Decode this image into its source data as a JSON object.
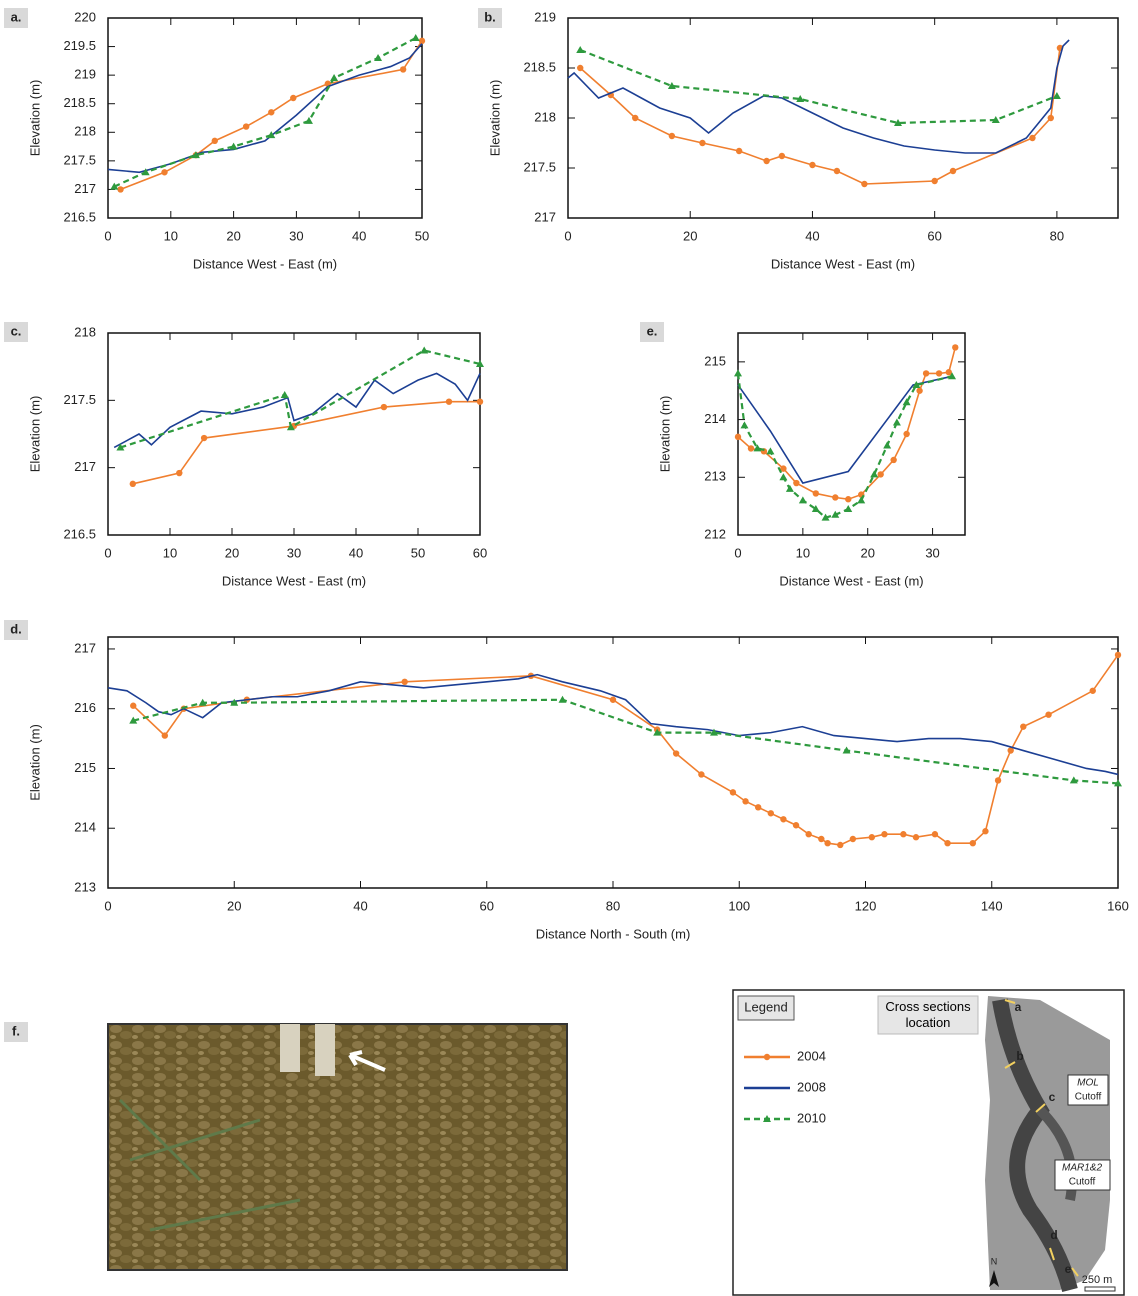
{
  "chart_data": [
    {
      "type": "line",
      "panel_label": "a.",
      "x_label": "Distance West - East (m)",
      "y_label": "Elevation (m)",
      "xlim": [
        0,
        50
      ],
      "xticks": [
        0,
        10,
        20,
        30,
        40,
        50
      ],
      "ylim": [
        216.5,
        220
      ],
      "yticks": [
        216.5,
        217,
        217.5,
        218,
        218.5,
        219,
        219.5,
        220
      ],
      "series": [
        {
          "name": "2004",
          "color": "#f07f2f",
          "marker": "circle",
          "dash": false,
          "x": [
            2,
            9,
            14,
            17,
            22,
            26,
            29.5,
            35,
            47,
            50
          ],
          "values": [
            217.0,
            217.3,
            217.6,
            217.85,
            218.1,
            218.35,
            218.6,
            218.85,
            219.1,
            219.6
          ]
        },
        {
          "name": "2008",
          "color": "#1c3f94",
          "marker": "none",
          "dash": false,
          "x": [
            0,
            5,
            10,
            15,
            20,
            25,
            30,
            35,
            40,
            45,
            48,
            50
          ],
          "values": [
            217.35,
            217.3,
            217.45,
            217.65,
            217.7,
            217.85,
            218.3,
            218.8,
            219.0,
            219.15,
            219.3,
            219.55
          ]
        },
        {
          "name": "2010",
          "color": "#2e9a3e",
          "marker": "triangle",
          "dash": true,
          "x": [
            1,
            6,
            14,
            20,
            26,
            32,
            36,
            43,
            49
          ],
          "values": [
            217.05,
            217.3,
            217.6,
            217.75,
            217.95,
            218.2,
            218.95,
            219.3,
            219.65
          ]
        }
      ]
    },
    {
      "type": "line",
      "panel_label": "b.",
      "x_label": "Distance West - East (m)",
      "y_label": "Elevation (m)",
      "xlim": [
        0,
        90
      ],
      "xticks": [
        0,
        20,
        40,
        60,
        80
      ],
      "ylim": [
        217,
        219
      ],
      "yticks": [
        217,
        217.5,
        218,
        218.5,
        219
      ],
      "series": [
        {
          "name": "2004",
          "color": "#f07f2f",
          "marker": "circle",
          "dash": false,
          "x": [
            2,
            7,
            11,
            17,
            22,
            28,
            32.5,
            35,
            40,
            44,
            48.5,
            60,
            63,
            76,
            79,
            80.5
          ],
          "values": [
            218.5,
            218.23,
            218.0,
            217.82,
            217.75,
            217.67,
            217.57,
            217.62,
            217.53,
            217.47,
            217.34,
            217.37,
            217.47,
            217.8,
            218.0,
            218.7
          ]
        },
        {
          "name": "2008",
          "color": "#1c3f94",
          "marker": "none",
          "dash": false,
          "x": [
            0,
            1,
            5,
            9,
            12,
            15,
            20,
            23,
            27,
            32,
            35,
            40,
            45,
            50,
            55,
            60,
            65,
            70,
            75,
            79,
            80,
            81,
            82
          ],
          "values": [
            218.4,
            218.45,
            218.2,
            218.3,
            218.2,
            218.1,
            218.0,
            217.85,
            218.05,
            218.22,
            218.2,
            218.05,
            217.9,
            217.8,
            217.72,
            217.68,
            217.65,
            217.65,
            217.8,
            218.1,
            218.5,
            218.72,
            218.78
          ]
        },
        {
          "name": "2010",
          "color": "#2e9a3e",
          "marker": "triangle",
          "dash": true,
          "x": [
            2,
            17,
            38,
            54,
            70,
            80
          ],
          "values": [
            218.68,
            218.32,
            218.19,
            217.95,
            217.98,
            218.22
          ]
        }
      ]
    },
    {
      "type": "line",
      "panel_label": "c.",
      "x_label": "Distance West - East (m)",
      "y_label": "Elevation (m)",
      "xlim": [
        0,
        60
      ],
      "xticks": [
        0,
        10,
        20,
        30,
        40,
        50,
        60
      ],
      "ylim": [
        216.5,
        218
      ],
      "yticks": [
        216.5,
        217,
        217.5,
        218
      ],
      "series": [
        {
          "name": "2004",
          "color": "#f07f2f",
          "marker": "circle",
          "dash": false,
          "x": [
            4,
            11.5,
            15.5,
            30,
            44.5,
            55,
            60
          ],
          "values": [
            216.88,
            216.96,
            217.22,
            217.31,
            217.45,
            217.49,
            217.49
          ]
        },
        {
          "name": "2008",
          "color": "#1c3f94",
          "marker": "none",
          "dash": false,
          "x": [
            1,
            5,
            7,
            10,
            15,
            20,
            25,
            29,
            30,
            33,
            37,
            40,
            43,
            46,
            50,
            53,
            56,
            58,
            60
          ],
          "values": [
            217.15,
            217.25,
            217.17,
            217.3,
            217.42,
            217.4,
            217.45,
            217.52,
            217.35,
            217.4,
            217.55,
            217.45,
            217.65,
            217.55,
            217.65,
            217.7,
            217.62,
            217.5,
            217.7
          ]
        },
        {
          "name": "2010",
          "color": "#2e9a3e",
          "marker": "triangle",
          "dash": true,
          "x": [
            2,
            28.5,
            29.5,
            51,
            60
          ],
          "values": [
            217.15,
            217.54,
            217.3,
            217.87,
            217.77
          ]
        }
      ]
    },
    {
      "type": "line",
      "panel_label": "e.",
      "x_label": "Distance West - East (m)",
      "y_label": "Elevation (m)",
      "xlim": [
        0,
        35
      ],
      "xticks": [
        0,
        10,
        20,
        30
      ],
      "ylim": [
        212,
        215.5
      ],
      "yticks": [
        212,
        213,
        214,
        215
      ],
      "series": [
        {
          "name": "2004",
          "color": "#f07f2f",
          "marker": "circle",
          "dash": false,
          "x": [
            0,
            2,
            4,
            7,
            9,
            12,
            15,
            17,
            19,
            22,
            24,
            26,
            28,
            29,
            31,
            32.5,
            33.5
          ],
          "values": [
            213.7,
            213.5,
            213.45,
            213.15,
            212.9,
            212.72,
            212.65,
            212.62,
            212.7,
            213.05,
            213.3,
            213.75,
            214.5,
            214.8,
            214.8,
            214.82,
            215.25
          ]
        },
        {
          "name": "2008",
          "color": "#1c3f94",
          "marker": "none",
          "dash": false,
          "x": [
            0,
            5,
            10,
            17,
            27,
            33
          ],
          "values": [
            214.6,
            213.8,
            212.9,
            213.1,
            214.6,
            214.75
          ]
        },
        {
          "name": "2010",
          "color": "#2e9a3e",
          "marker": "triangle",
          "dash": true,
          "x": [
            0,
            1,
            3,
            5,
            7,
            8,
            10,
            12,
            13.5,
            15,
            17,
            19,
            21,
            23,
            24.5,
            26,
            27.5,
            33
          ],
          "values": [
            214.8,
            213.9,
            213.5,
            213.45,
            213.0,
            212.8,
            212.6,
            212.45,
            212.3,
            212.35,
            212.45,
            212.6,
            213.05,
            213.55,
            213.95,
            214.3,
            214.6,
            214.75
          ]
        }
      ]
    },
    {
      "type": "line",
      "panel_label": "d.",
      "x_label": "Distance North - South (m)",
      "y_label": "Elevation (m)",
      "xlim": [
        0,
        160
      ],
      "xticks": [
        0,
        20,
        40,
        60,
        80,
        100,
        120,
        140,
        160
      ],
      "ylim": [
        213,
        217.2
      ],
      "yticks": [
        213,
        214,
        215,
        216,
        217
      ],
      "series": [
        {
          "name": "2004",
          "color": "#f07f2f",
          "marker": "circle",
          "dash": false,
          "x": [
            4,
            9,
            12,
            22,
            47,
            67,
            80,
            87,
            90,
            94,
            99,
            101,
            103,
            105,
            107,
            109,
            111,
            113,
            114,
            116,
            118,
            121,
            123,
            126,
            128,
            131,
            133,
            137,
            139,
            141,
            143,
            145,
            149,
            156,
            160
          ],
          "values": [
            216.05,
            215.55,
            216.0,
            216.15,
            216.45,
            216.55,
            216.15,
            215.65,
            215.25,
            214.9,
            214.6,
            214.45,
            214.35,
            214.25,
            214.15,
            214.05,
            213.9,
            213.82,
            213.75,
            213.72,
            213.82,
            213.85,
            213.9,
            213.9,
            213.85,
            213.9,
            213.75,
            213.75,
            213.95,
            214.8,
            215.3,
            215.7,
            215.9,
            216.3,
            216.9
          ]
        },
        {
          "name": "2008",
          "color": "#1c3f94",
          "marker": "none",
          "dash": false,
          "x": [
            0,
            3,
            6,
            8,
            10,
            12,
            15,
            18,
            22,
            26,
            30,
            35,
            40,
            45,
            50,
            55,
            60,
            65,
            68,
            72,
            78,
            82,
            86,
            90,
            95,
            100,
            105,
            110,
            115,
            120,
            125,
            130,
            135,
            140,
            145,
            150,
            155,
            158,
            160
          ],
          "values": [
            216.35,
            216.3,
            216.1,
            215.95,
            215.9,
            216.0,
            215.85,
            216.1,
            216.15,
            216.2,
            216.2,
            216.3,
            216.45,
            216.4,
            216.35,
            216.4,
            216.45,
            216.5,
            216.57,
            216.45,
            216.3,
            216.15,
            215.75,
            215.7,
            215.65,
            215.55,
            215.6,
            215.7,
            215.55,
            215.5,
            215.45,
            215.5,
            215.5,
            215.45,
            215.3,
            215.15,
            215.0,
            214.95,
            214.9
          ]
        },
        {
          "name": "2010",
          "color": "#2e9a3e",
          "marker": "triangle",
          "dash": true,
          "x": [
            4,
            15,
            20,
            72,
            87,
            96,
            117,
            153,
            160
          ],
          "values": [
            215.8,
            216.1,
            216.1,
            216.15,
            215.6,
            215.6,
            215.3,
            214.8,
            214.75
          ]
        }
      ]
    }
  ],
  "legend": {
    "title": "Legend"
  },
  "photo": {
    "label": "f."
  },
  "map": {
    "title": "Cross sections location",
    "labels": [
      "a",
      "b",
      "c",
      "d",
      "e"
    ],
    "mol": [
      "MOL",
      "Cutoff"
    ],
    "mar": [
      "MAR1&2",
      "Cutoff"
    ],
    "scale": "250 m",
    "north": "N"
  }
}
